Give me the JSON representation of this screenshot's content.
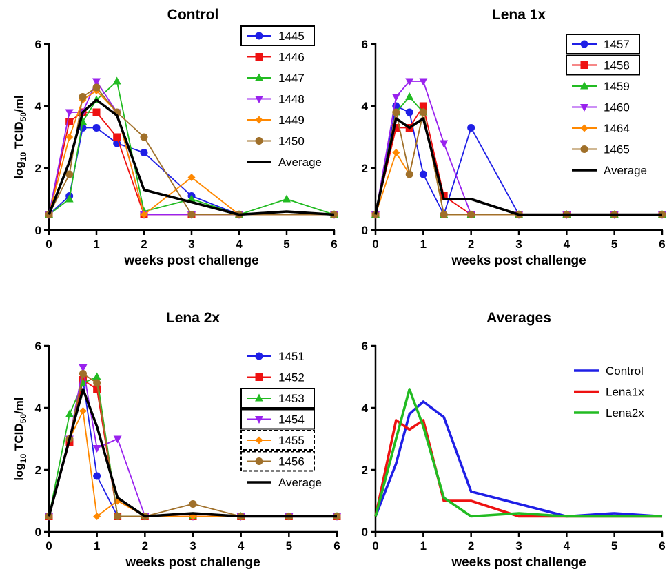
{
  "chart_data": [
    {
      "type": "line",
      "title": "Control",
      "xlabel": "weeks post challenge",
      "ylabel": "log10 TCID50/ml",
      "ylabel_parts": {
        "pre": "log",
        "sub1": "10",
        "mid": " TCID",
        "sub2": "50",
        "post": "/ml"
      },
      "xlim": [
        0,
        6
      ],
      "ylim": [
        0,
        6
      ],
      "xticks": [
        0,
        1,
        2,
        3,
        4,
        5,
        6
      ],
      "yticks": [
        0,
        2,
        4,
        6
      ],
      "xtick_labels": [
        "0",
        "1",
        "2",
        "3",
        "4",
        "5",
        "6"
      ],
      "ytick_labels": [
        "0",
        "2",
        "4",
        "6"
      ],
      "legend_position": "top-right",
      "series": [
        {
          "name": "1445",
          "color": "#1f1fe6",
          "marker": "circle",
          "legend_box": "solid",
          "x": [
            0,
            0.43,
            0.71,
            1,
            1.43,
            2,
            3,
            4,
            6
          ],
          "y": [
            0.5,
            1.1,
            3.3,
            3.3,
            2.8,
            2.5,
            1.1,
            0.5,
            0.5
          ]
        },
        {
          "name": "1446",
          "color": "#ee1111",
          "marker": "square",
          "legend_box": "none",
          "x": [
            0,
            0.43,
            0.71,
            1,
            1.43,
            2,
            3,
            4,
            6
          ],
          "y": [
            0.5,
            3.5,
            3.8,
            3.8,
            3.0,
            0.5,
            0.5,
            0.5,
            0.5
          ]
        },
        {
          "name": "1447",
          "color": "#22bb22",
          "marker": "triangle-up",
          "legend_box": "none",
          "x": [
            0,
            0.43,
            0.71,
            1,
            1.43,
            2,
            3,
            4,
            5,
            6
          ],
          "y": [
            0.5,
            1.0,
            3.5,
            4.2,
            4.8,
            0.6,
            1.0,
            0.5,
            1.0,
            0.5
          ]
        },
        {
          "name": "1448",
          "color": "#9922ee",
          "marker": "triangle-down",
          "legend_box": "none",
          "x": [
            0,
            0.43,
            0.71,
            1,
            1.43,
            2,
            3,
            4,
            6
          ],
          "y": [
            0.5,
            3.8,
            3.8,
            4.8,
            3.8,
            0.5,
            0.5,
            0.5,
            0.5
          ]
        },
        {
          "name": "1449",
          "color": "#ff8800",
          "marker": "diamond",
          "legend_box": "none",
          "x": [
            0,
            0.43,
            0.71,
            1,
            1.43,
            2,
            3,
            4,
            6
          ],
          "y": [
            0.5,
            3.0,
            4.2,
            4.5,
            3.8,
            0.5,
            1.7,
            0.5,
            0.5
          ]
        },
        {
          "name": "1450",
          "color": "#a0702a",
          "marker": "circle",
          "legend_box": "none",
          "x": [
            0,
            0.43,
            0.71,
            1,
            1.43,
            2,
            3,
            4,
            6
          ],
          "y": [
            0.5,
            1.8,
            4.3,
            4.6,
            3.8,
            3.0,
            0.5,
            0.5,
            0.5
          ]
        },
        {
          "name": "Average",
          "color": "#000000",
          "marker": "none",
          "legend_box": "none",
          "thick": true,
          "x": [
            0,
            0.43,
            0.71,
            1,
            1.43,
            2,
            3,
            4,
            5,
            6
          ],
          "y": [
            0.5,
            2.2,
            3.8,
            4.2,
            3.7,
            1.3,
            0.9,
            0.5,
            0.6,
            0.5
          ]
        }
      ]
    },
    {
      "type": "line",
      "title": "Lena 1x",
      "xlabel": "weeks post challenge",
      "ylabel": "",
      "xlim": [
        0,
        6
      ],
      "ylim": [
        0,
        6
      ],
      "xticks": [
        0,
        1,
        2,
        3,
        4,
        5,
        6
      ],
      "yticks": [
        0,
        2,
        4,
        6
      ],
      "xtick_labels": [
        "0",
        "1",
        "2",
        "3",
        "4",
        "5",
        "6"
      ],
      "ytick_labels": [
        "0",
        "2",
        "4",
        "6"
      ],
      "legend_position": "top-right",
      "series": [
        {
          "name": "1457",
          "color": "#1f1fe6",
          "marker": "circle",
          "legend_box": "solid",
          "x": [
            0,
            0.43,
            0.71,
            1,
            1.43,
            2,
            3,
            4,
            5,
            6
          ],
          "y": [
            0.5,
            4.0,
            3.8,
            1.8,
            0.5,
            3.3,
            0.5,
            0.5,
            0.5,
            0.5
          ]
        },
        {
          "name": "1458",
          "color": "#ee1111",
          "marker": "square",
          "legend_box": "solid",
          "x": [
            0,
            0.43,
            0.71,
            1,
            1.43,
            2,
            3,
            4,
            5,
            6
          ],
          "y": [
            0.5,
            3.3,
            3.3,
            4.0,
            1.1,
            0.5,
            0.5,
            0.5,
            0.5,
            0.5
          ]
        },
        {
          "name": "1459",
          "color": "#22bb22",
          "marker": "triangle-up",
          "legend_box": "none",
          "x": [
            0,
            0.43,
            0.71,
            1,
            1.43,
            2,
            3,
            4,
            5,
            6
          ],
          "y": [
            0.5,
            3.8,
            4.3,
            3.8,
            0.5,
            0.5,
            0.5,
            0.5,
            0.5,
            0.5
          ]
        },
        {
          "name": "1460",
          "color": "#9922ee",
          "marker": "triangle-down",
          "legend_box": "none",
          "x": [
            0,
            0.43,
            0.71,
            1,
            1.43,
            2,
            3,
            4,
            5,
            6
          ],
          "y": [
            0.5,
            4.3,
            4.8,
            4.8,
            2.8,
            0.5,
            0.5,
            0.5,
            0.5,
            0.5
          ]
        },
        {
          "name": "1464",
          "color": "#ff8800",
          "marker": "diamond",
          "legend_box": "none",
          "x": [
            0,
            0.43,
            0.71,
            1,
            1.43,
            2,
            3,
            4,
            5,
            6
          ],
          "y": [
            0.5,
            2.5,
            1.8,
            3.8,
            0.5,
            0.5,
            0.5,
            0.5,
            0.5,
            0.5
          ]
        },
        {
          "name": "1465",
          "color": "#a0702a",
          "marker": "circle",
          "legend_box": "none",
          "x": [
            0,
            0.43,
            0.71,
            1,
            1.43,
            2,
            3,
            4,
            5,
            6
          ],
          "y": [
            0.5,
            3.8,
            1.8,
            3.8,
            0.5,
            0.5,
            0.5,
            0.5,
            0.5,
            0.5
          ]
        },
        {
          "name": "Average",
          "color": "#000000",
          "marker": "none",
          "legend_box": "none",
          "thick": true,
          "x": [
            0,
            0.43,
            0.71,
            1,
            1.43,
            2,
            3,
            4,
            5,
            6
          ],
          "y": [
            0.5,
            3.6,
            3.3,
            3.6,
            1.0,
            1.0,
            0.5,
            0.5,
            0.5,
            0.5
          ]
        }
      ]
    },
    {
      "type": "line",
      "title": "Lena 2x",
      "xlabel": "weeks post challenge",
      "ylabel": "log10 TCID50/ml",
      "ylabel_parts": {
        "pre": "log",
        "sub1": "10",
        "mid": " TCID",
        "sub2": "50",
        "post": "/ml"
      },
      "xlim": [
        0,
        6
      ],
      "ylim": [
        0,
        6
      ],
      "xticks": [
        0,
        1,
        2,
        3,
        4,
        5,
        6
      ],
      "yticks": [
        0,
        2,
        4,
        6
      ],
      "xtick_labels": [
        "0",
        "1",
        "2",
        "3",
        "4",
        "5",
        "6"
      ],
      "ytick_labels": [
        "0",
        "2",
        "4",
        "6"
      ],
      "legend_position": "top-right",
      "series": [
        {
          "name": "1451",
          "color": "#1f1fe6",
          "marker": "circle",
          "legend_box": "none",
          "x": [
            0,
            0.43,
            0.71,
            1,
            1.43,
            2,
            3,
            4,
            5,
            6
          ],
          "y": [
            0.5,
            2.9,
            4.9,
            1.8,
            0.5,
            0.5,
            0.5,
            0.5,
            0.5,
            0.5
          ]
        },
        {
          "name": "1452",
          "color": "#ee1111",
          "marker": "square",
          "legend_box": "none",
          "x": [
            0,
            0.43,
            0.71,
            1,
            1.43,
            2,
            3,
            4,
            5,
            6
          ],
          "y": [
            0.5,
            2.9,
            4.9,
            4.6,
            0.5,
            0.5,
            0.5,
            0.5,
            0.5,
            0.5
          ]
        },
        {
          "name": "1453",
          "color": "#22bb22",
          "marker": "triangle-up",
          "legend_box": "solid",
          "x": [
            0,
            0.43,
            0.71,
            1,
            1.43,
            2,
            3,
            4,
            5,
            6
          ],
          "y": [
            0.5,
            3.8,
            4.8,
            5.0,
            0.5,
            0.5,
            0.5,
            0.5,
            0.5,
            0.5
          ]
        },
        {
          "name": "1454",
          "color": "#9922ee",
          "marker": "triangle-down",
          "legend_box": "solid",
          "x": [
            0,
            0.43,
            0.71,
            1,
            1.43,
            2,
            3,
            4,
            5,
            6
          ],
          "y": [
            0.5,
            3.0,
            5.3,
            2.7,
            3.0,
            0.5,
            0.5,
            0.5,
            0.5,
            0.5
          ]
        },
        {
          "name": "1455",
          "color": "#ff8800",
          "marker": "diamond",
          "legend_box": "dashed",
          "x": [
            0,
            0.43,
            0.71,
            1,
            1.43,
            2,
            3,
            4,
            5,
            6
          ],
          "y": [
            0.5,
            3.0,
            3.9,
            0.5,
            1.0,
            0.5,
            0.5,
            0.5,
            0.5,
            0.5
          ]
        },
        {
          "name": "1456",
          "color": "#a0702a",
          "marker": "circle",
          "legend_box": "dashed",
          "x": [
            0,
            0.43,
            0.71,
            1,
            1.43,
            2,
            3,
            4,
            5,
            6
          ],
          "y": [
            0.5,
            3.0,
            5.1,
            4.8,
            0.5,
            0.5,
            0.9,
            0.5,
            0.5,
            0.5
          ]
        },
        {
          "name": "Average",
          "color": "#000000",
          "marker": "none",
          "legend_box": "none",
          "thick": true,
          "x": [
            0,
            0.43,
            0.71,
            1,
            1.43,
            2,
            3,
            4,
            5,
            6
          ],
          "y": [
            0.5,
            3.0,
            4.6,
            3.4,
            1.1,
            0.5,
            0.6,
            0.5,
            0.5,
            0.5
          ]
        }
      ]
    },
    {
      "type": "line",
      "title": "Averages",
      "xlabel": "weeks post challenge",
      "ylabel": "",
      "xlim": [
        0,
        6
      ],
      "ylim": [
        0,
        6
      ],
      "xticks": [
        0,
        1,
        2,
        3,
        4,
        5,
        6
      ],
      "yticks": [
        0,
        2,
        4,
        6
      ],
      "xtick_labels": [
        "0",
        "1",
        "2",
        "3",
        "4",
        "5",
        "6"
      ],
      "ytick_labels": [
        "0",
        "2",
        "4",
        "6"
      ],
      "legend_position": "top-right",
      "series": [
        {
          "name": "Control",
          "color": "#1f1fe6",
          "marker": "none",
          "legend_box": "none",
          "thick": true,
          "x": [
            0,
            0.43,
            0.71,
            1,
            1.43,
            2,
            3,
            4,
            5,
            6
          ],
          "y": [
            0.5,
            2.2,
            3.8,
            4.2,
            3.7,
            1.3,
            0.9,
            0.5,
            0.6,
            0.5
          ]
        },
        {
          "name": "Lena1x",
          "color": "#ee1111",
          "marker": "none",
          "legend_box": "none",
          "thick": true,
          "x": [
            0,
            0.43,
            0.71,
            1,
            1.43,
            2,
            3,
            4,
            5,
            6
          ],
          "y": [
            0.5,
            3.6,
            3.3,
            3.6,
            1.0,
            1.0,
            0.5,
            0.5,
            0.5,
            0.5
          ]
        },
        {
          "name": "Lena2x",
          "color": "#22bb22",
          "marker": "none",
          "legend_box": "none",
          "thick": true,
          "x": [
            0,
            0.43,
            0.71,
            1,
            1.43,
            2,
            3,
            4,
            5,
            6
          ],
          "y": [
            0.5,
            3.0,
            4.6,
            3.4,
            1.1,
            0.5,
            0.6,
            0.5,
            0.5,
            0.5
          ]
        }
      ]
    }
  ]
}
